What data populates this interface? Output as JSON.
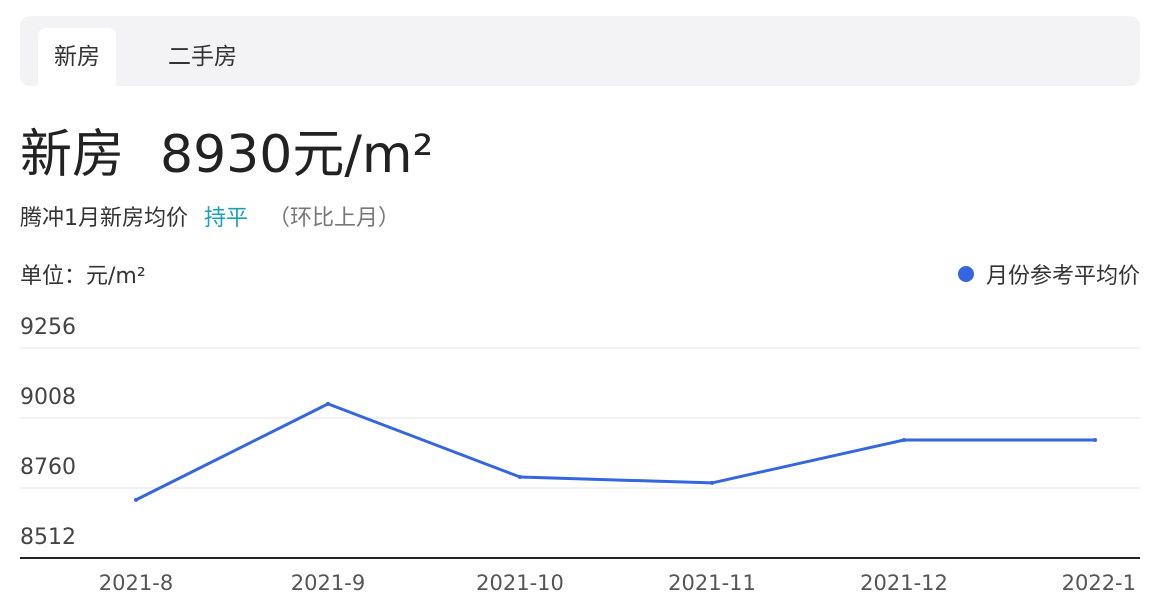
{
  "tabs": [
    {
      "label": "新房",
      "active": true
    },
    {
      "label": "二手房",
      "active": false
    }
  ],
  "header": {
    "type": "新房",
    "price": "8930元/m²"
  },
  "summary": {
    "text": "腾冲1月新房均价",
    "trend": "持平",
    "compare": "（环比上月）"
  },
  "unit": "单位：元/m²",
  "colors": {
    "line": "#3366e0",
    "trend": "#1aa0b8"
  },
  "chart_data": {
    "type": "line",
    "categories": [
      "2021-8",
      "2021-9",
      "2021-10",
      "2021-11",
      "2021-12",
      "2022-1"
    ],
    "series": [
      {
        "name": "月份参考平均价",
        "values": [
          8718,
          9058,
          8799,
          8778,
          8930,
          8930
        ]
      }
    ],
    "yticks": [
      9256,
      9008,
      8760,
      8512
    ],
    "ylim": [
      8512,
      9256
    ],
    "grid": true,
    "legend": "top-right"
  }
}
